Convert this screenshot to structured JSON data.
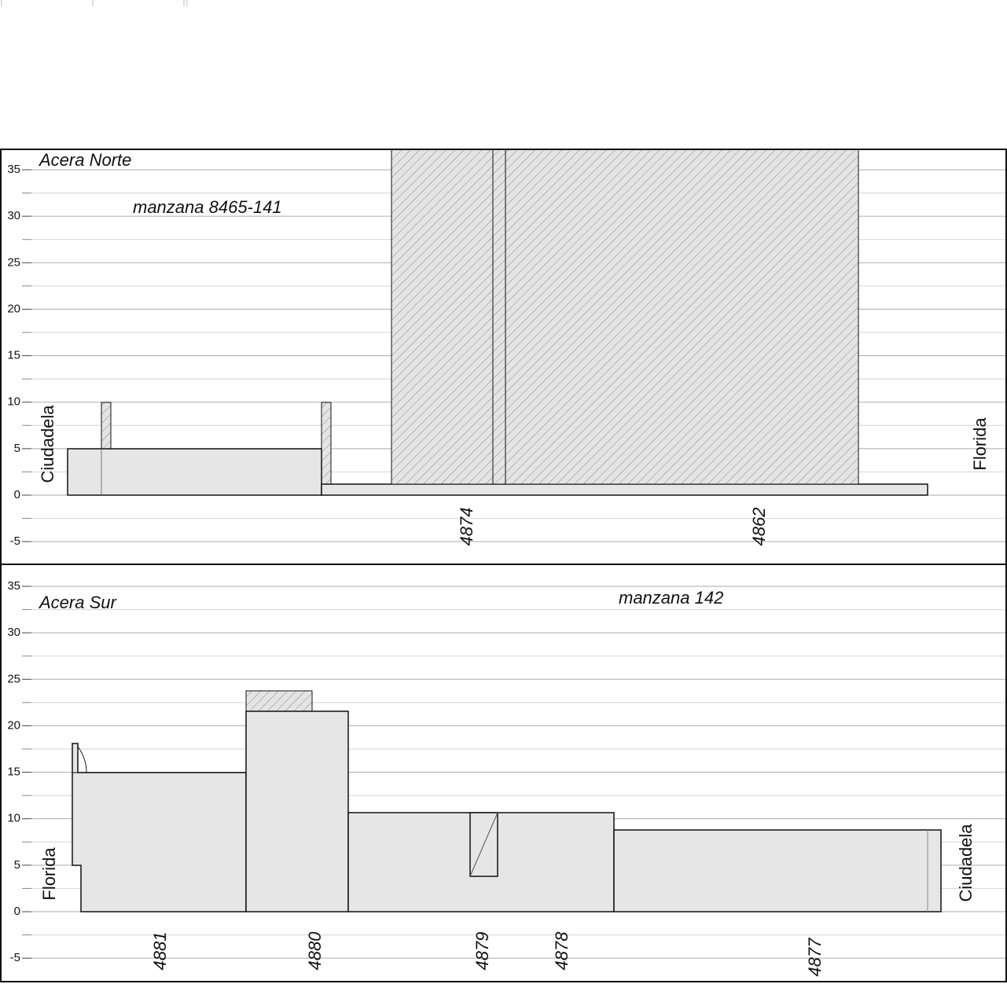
{
  "panels": [
    {
      "title": "Acera Norte",
      "block": "manzana 8465-141",
      "left_street": "Ciudadela",
      "right_street": "Florida",
      "lots": [
        "4874",
        "4862"
      ],
      "yticks": [
        35,
        30,
        25,
        20,
        15,
        10,
        5,
        0,
        -5
      ]
    },
    {
      "title": "Acera Sur",
      "block": "manzana 142",
      "left_street": "Florida",
      "right_street": "Ciudadela",
      "lots": [
        "4881",
        "4880",
        "4879",
        "4878",
        "4877"
      ],
      "yticks": [
        35,
        30,
        25,
        20,
        15,
        10,
        5,
        0,
        -5
      ]
    }
  ]
}
